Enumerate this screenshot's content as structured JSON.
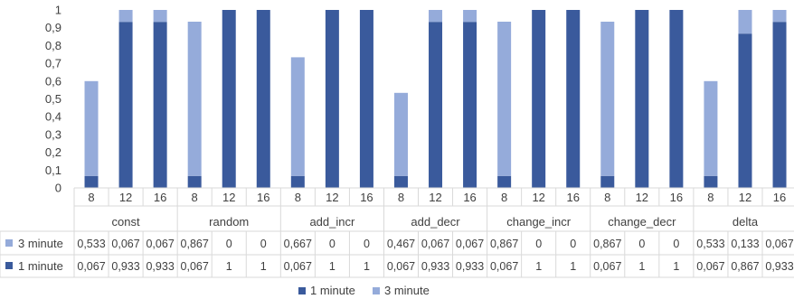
{
  "chart_data": {
    "type": "bar",
    "stacked": true,
    "groups": [
      "const",
      "random",
      "add_incr",
      "add_decr",
      "change_incr",
      "change_decr",
      "delta"
    ],
    "subcategories": [
      "8",
      "12",
      "16"
    ],
    "y_ticks": [
      "0",
      "0,1",
      "0,2",
      "0,3",
      "0,4",
      "0,5",
      "0,6",
      "0,7",
      "0,8",
      "0,9",
      "1"
    ],
    "ylim": [
      0,
      1
    ],
    "grid": false,
    "legend_position": "bottom",
    "legend": [
      "1 minute",
      "3 minute"
    ],
    "series": [
      {
        "name": "1 minute",
        "color": "#3A5A9C",
        "values": [
          0.067,
          0.933,
          0.933,
          0.067,
          1,
          1,
          0.067,
          1,
          1,
          0.067,
          0.933,
          0.933,
          0.067,
          1,
          1,
          0.067,
          1,
          1,
          0.067,
          0.867,
          0.933
        ],
        "labels": [
          "0,067",
          "0,933",
          "0,933",
          "0,067",
          "1",
          "1",
          "0,067",
          "1",
          "1",
          "0,067",
          "0,933",
          "0,933",
          "0,067",
          "1",
          "1",
          "0,067",
          "1",
          "1",
          "0,067",
          "0,867",
          "0,933"
        ]
      },
      {
        "name": "3 minute",
        "color": "#95ABDA",
        "values": [
          0.533,
          0.067,
          0.067,
          0.867,
          0,
          0,
          0.667,
          0,
          0,
          0.467,
          0.067,
          0.067,
          0.867,
          0,
          0,
          0.867,
          0,
          0,
          0.533,
          0.133,
          0.067
        ],
        "labels": [
          "0,533",
          "0,067",
          "0,067",
          "0,867",
          "0",
          "0",
          "0,667",
          "0",
          "0",
          "0,467",
          "0,067",
          "0,067",
          "0,867",
          "0",
          "0",
          "0,867",
          "0",
          "0",
          "0,533",
          "0,133",
          "0,067"
        ]
      }
    ]
  }
}
